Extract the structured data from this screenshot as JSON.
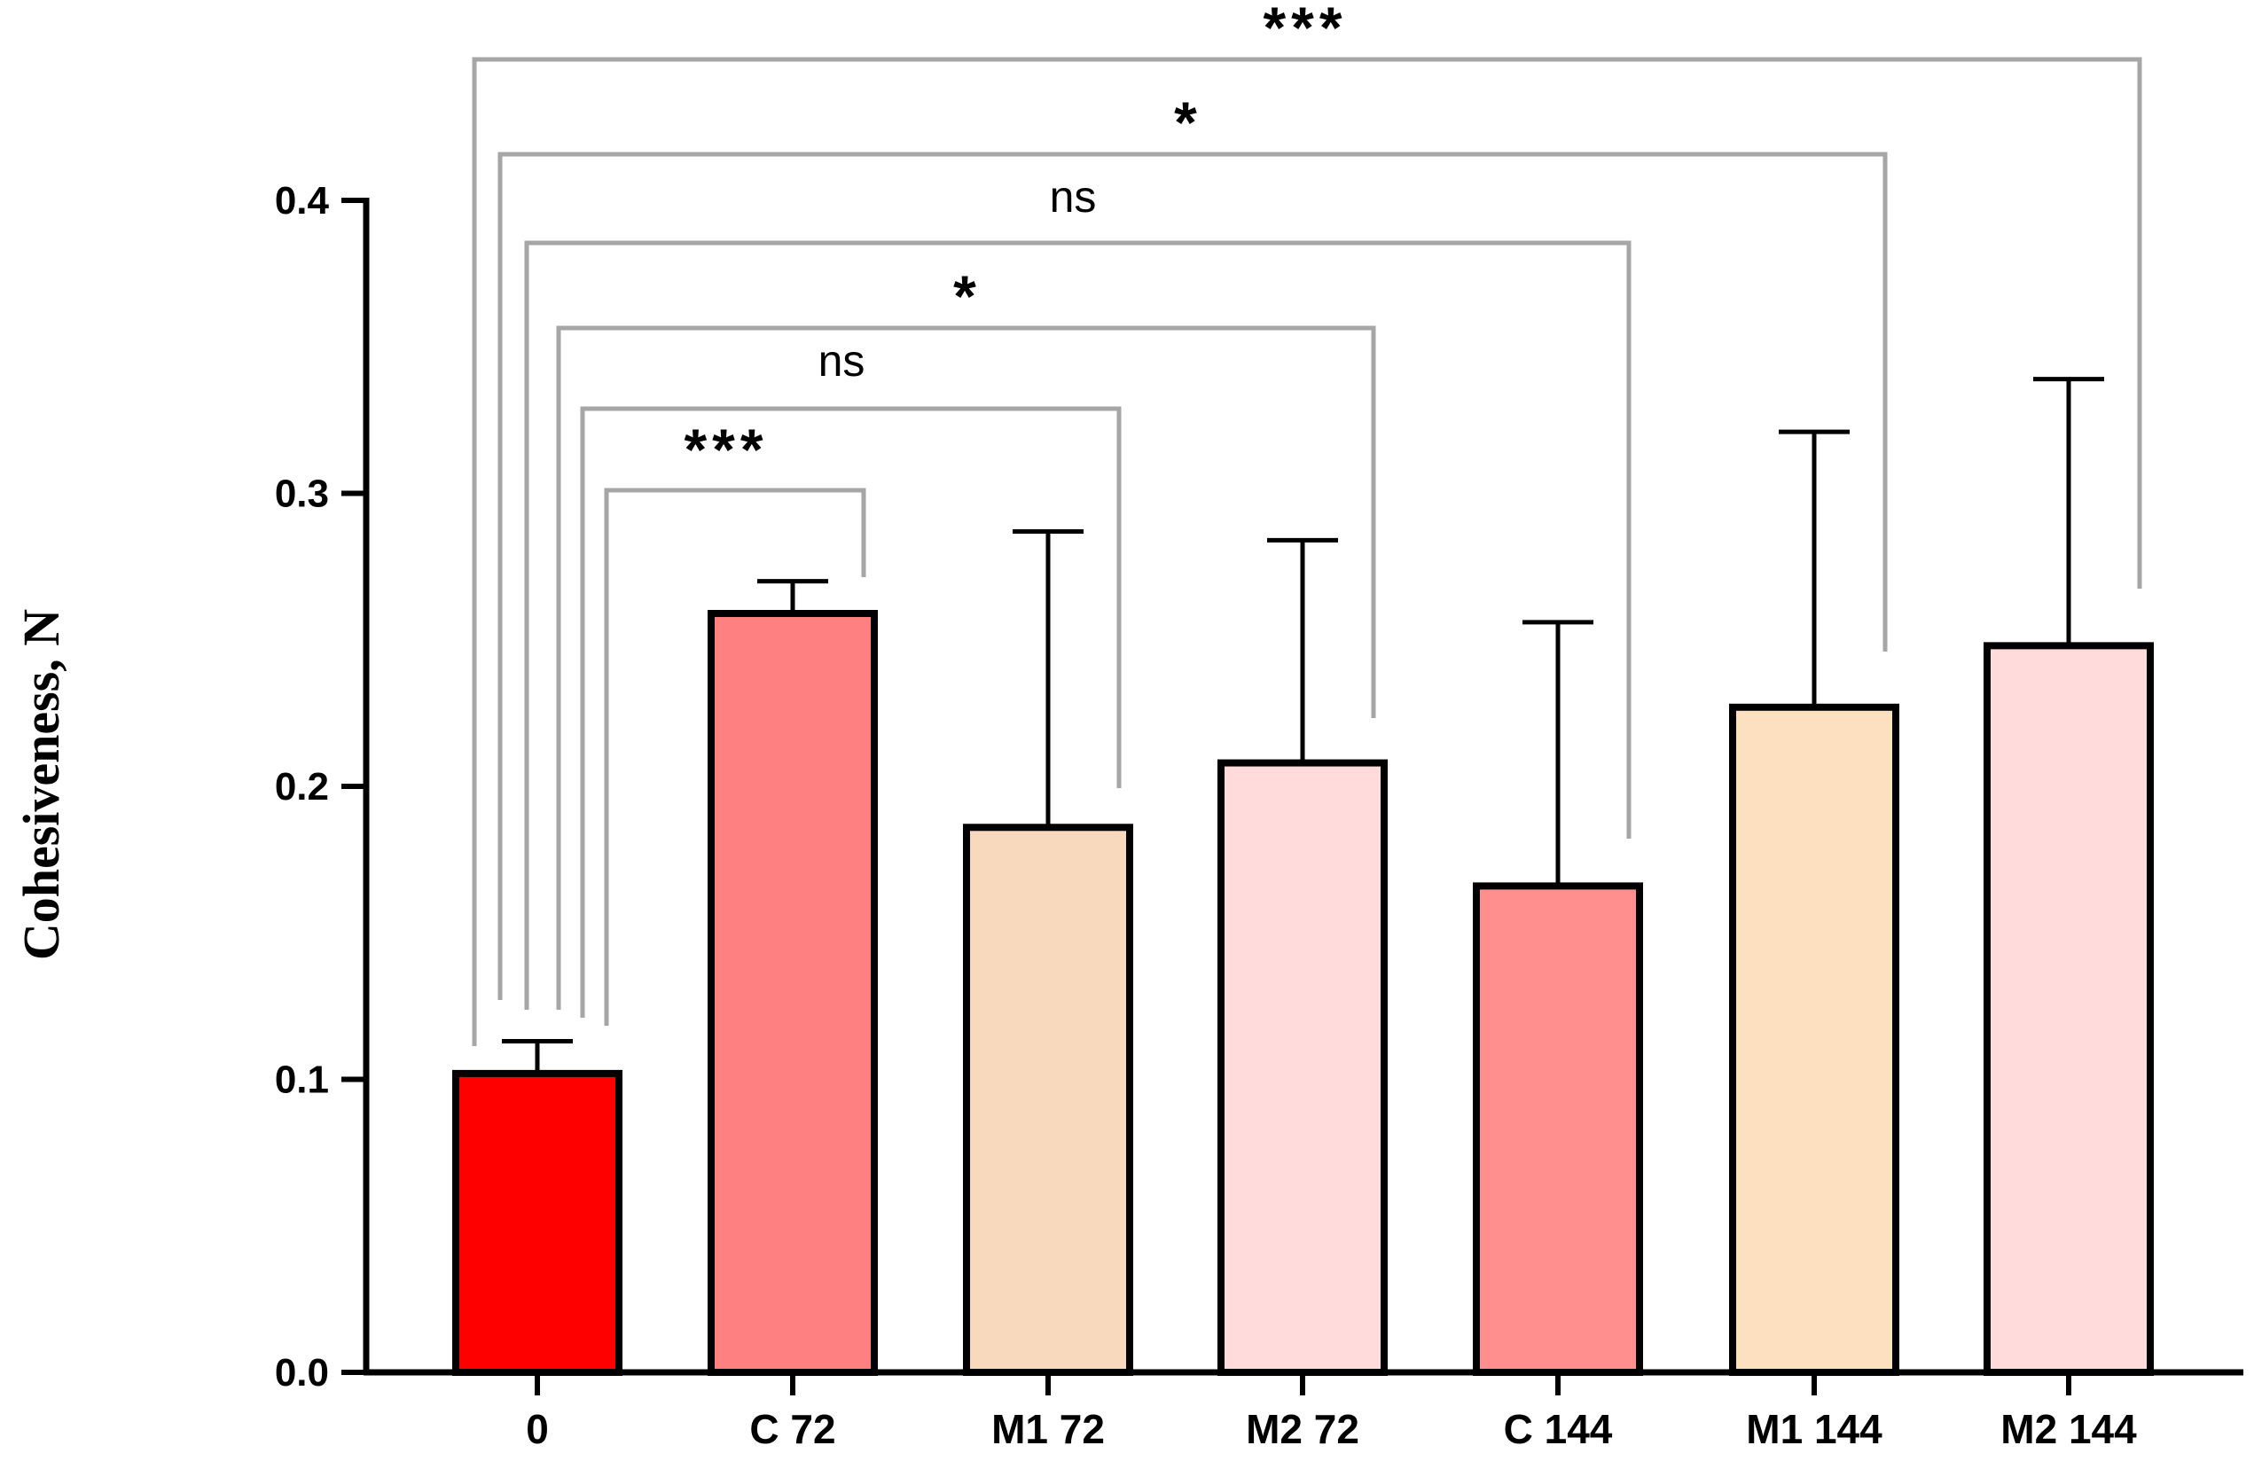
{
  "chart_data": {
    "type": "bar",
    "title": "",
    "xlabel": "",
    "ylabel": "Cohesiveness, N",
    "ylim": [
      0,
      0.4
    ],
    "yticks": [
      0.0,
      0.1,
      0.2,
      0.3,
      0.4
    ],
    "ytick_labels": [
      "0.0",
      "0.1",
      "0.2",
      "0.3",
      "0.4"
    ],
    "grid": false,
    "categories": [
      "0",
      "C 72",
      "M1 72",
      "M2 72",
      "C 144",
      "M1 144",
      "M2 144"
    ],
    "values": [
      0.102,
      0.259,
      0.186,
      0.208,
      0.166,
      0.227,
      0.248
    ],
    "errors": [
      0.011,
      0.011,
      0.101,
      0.076,
      0.09,
      0.094,
      0.091
    ],
    "colors": [
      "#ff0000",
      "#ff8080",
      "#f9d9bd",
      "#ffdbdb",
      "#ff8f8f",
      "#fce0c0",
      "#ffdbdb"
    ],
    "comparisons": [
      {
        "from": "0",
        "to": "C 72",
        "label": "***"
      },
      {
        "from": "0",
        "to": "M1 72",
        "label": "ns"
      },
      {
        "from": "0",
        "to": "M2 72",
        "label": "*"
      },
      {
        "from": "0",
        "to": "C 144",
        "label": "ns"
      },
      {
        "from": "0",
        "to": "M1 144",
        "label": "*"
      },
      {
        "from": "0",
        "to": "M2 144",
        "label": "***"
      }
    ]
  }
}
